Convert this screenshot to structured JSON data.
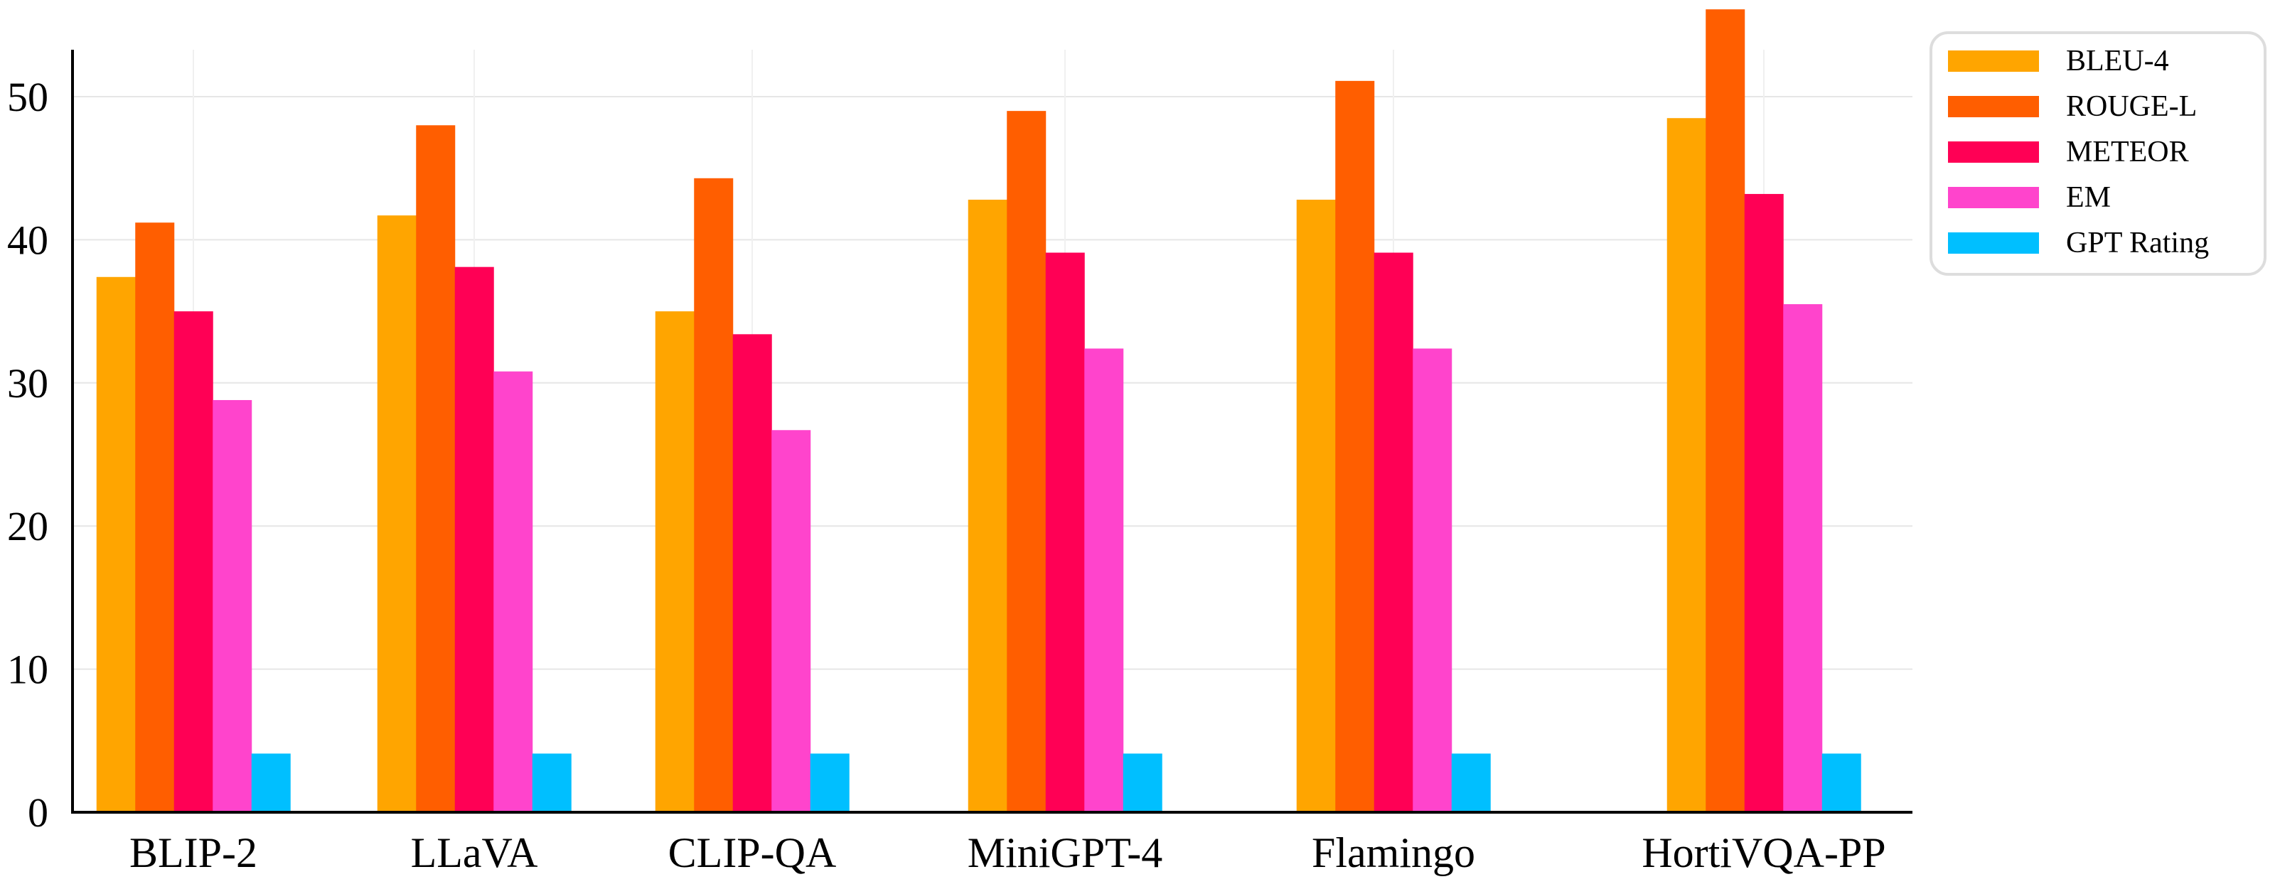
{
  "chart_data": {
    "type": "bar",
    "title": "",
    "xlabel": "",
    "ylabel": "",
    "ylim": [
      0,
      55
    ],
    "yticks": [
      0,
      10,
      20,
      30,
      40,
      50
    ],
    "grid": true,
    "legend_position": "top-right",
    "categories": [
      "BLIP-2",
      "LLaVA",
      "CLIP-QA",
      "MiniGPT-4",
      "Flamingo",
      "HortiVQA-PP"
    ],
    "series": [
      {
        "name": "BLEU-4",
        "color": "#FFA500",
        "values": [
          37.4,
          41.7,
          35.0,
          42.8,
          42.8,
          48.5
        ]
      },
      {
        "name": "ROUGE-L",
        "color": "#FF5E00",
        "values": [
          41.2,
          48.0,
          44.3,
          49.0,
          51.1,
          56.1
        ]
      },
      {
        "name": "METEOR",
        "color": "#FF0055",
        "values": [
          35.0,
          38.1,
          33.4,
          39.1,
          39.1,
          43.2
        ]
      },
      {
        "name": "EM",
        "color": "#FF44CC",
        "values": [
          28.8,
          30.8,
          26.7,
          32.4,
          32.4,
          35.5
        ]
      },
      {
        "name": "GPT Rating",
        "color": "#00BFFF",
        "values": [
          4.1,
          4.1,
          4.1,
          4.1,
          4.1,
          4.1
        ]
      }
    ]
  }
}
